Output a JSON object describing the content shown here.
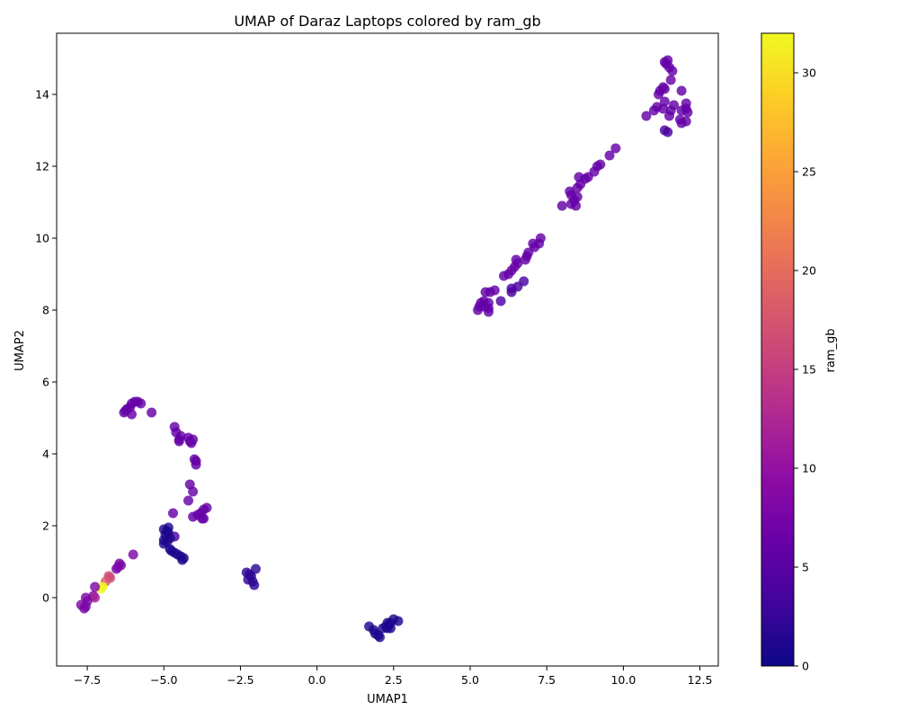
{
  "chart_data": {
    "type": "scatter",
    "title": "UMAP of Daraz Laptops colored by ram_gb",
    "xlabel": "UMAP1",
    "ylabel": "UMAP2",
    "xlim": [
      -8.5,
      13.1
    ],
    "ylim": [
      -1.9,
      15.7
    ],
    "xticks": [
      -7.5,
      -5.0,
      -2.5,
      0.0,
      2.5,
      5.0,
      7.5,
      10.0,
      12.5
    ],
    "xtick_labels": [
      "−7.5",
      "−5.0",
      "−2.5",
      "0.0",
      "2.5",
      "5.0",
      "7.5",
      "10.0",
      "12.5"
    ],
    "yticks": [
      0,
      2,
      4,
      6,
      8,
      10,
      12,
      14
    ],
    "ytick_labels": [
      "0",
      "2",
      "4",
      "6",
      "8",
      "10",
      "12",
      "14"
    ],
    "grid": false,
    "legend": "none",
    "colorbar": {
      "label": "ram_gb",
      "range": [
        0,
        32
      ],
      "ticks": [
        0,
        5,
        10,
        15,
        20,
        25,
        30
      ],
      "tick_labels": [
        "0",
        "5",
        "10",
        "15",
        "20",
        "25",
        "30"
      ],
      "colormap": "plasma"
    },
    "point_columns": [
      "umap1",
      "umap2",
      "ram_gb"
    ],
    "points": [
      [
        11.35,
        14.9,
        6
      ],
      [
        11.45,
        14.95,
        6
      ],
      [
        11.4,
        14.85,
        6
      ],
      [
        11.5,
        14.75,
        6
      ],
      [
        11.6,
        14.65,
        6
      ],
      [
        11.55,
        14.4,
        6
      ],
      [
        11.9,
        14.1,
        6
      ],
      [
        11.35,
        14.15,
        6
      ],
      [
        11.2,
        14.1,
        6
      ],
      [
        11.15,
        14.0,
        6
      ],
      [
        11.3,
        14.2,
        6
      ],
      [
        11.65,
        13.7,
        6
      ],
      [
        11.35,
        13.8,
        6
      ],
      [
        11.1,
        13.65,
        6
      ],
      [
        11.0,
        13.55,
        6
      ],
      [
        11.3,
        13.6,
        6
      ],
      [
        11.55,
        13.55,
        6
      ],
      [
        11.5,
        13.4,
        6
      ],
      [
        12.05,
        13.75,
        6
      ],
      [
        12.05,
        13.6,
        6
      ],
      [
        12.1,
        13.5,
        6
      ],
      [
        11.9,
        13.55,
        6
      ],
      [
        11.85,
        13.3,
        6
      ],
      [
        11.9,
        13.2,
        6
      ],
      [
        12.05,
        13.25,
        6
      ],
      [
        10.75,
        13.4,
        6
      ],
      [
        11.35,
        13.0,
        4
      ],
      [
        11.45,
        12.95,
        4
      ],
      [
        9.75,
        12.5,
        6
      ],
      [
        9.55,
        12.3,
        6
      ],
      [
        9.25,
        12.05,
        6
      ],
      [
        9.15,
        12.0,
        6
      ],
      [
        9.05,
        11.85,
        6
      ],
      [
        8.85,
        11.7,
        6
      ],
      [
        8.75,
        11.65,
        6
      ],
      [
        8.55,
        11.7,
        6
      ],
      [
        8.6,
        11.5,
        6
      ],
      [
        8.5,
        11.4,
        6
      ],
      [
        8.25,
        11.3,
        6
      ],
      [
        8.3,
        11.2,
        6
      ],
      [
        8.5,
        11.15,
        6
      ],
      [
        8.4,
        11.05,
        6
      ],
      [
        8.3,
        10.95,
        6
      ],
      [
        8.45,
        10.9,
        6
      ],
      [
        8.0,
        10.9,
        6
      ],
      [
        7.3,
        10.0,
        6
      ],
      [
        7.25,
        9.85,
        6
      ],
      [
        7.05,
        9.85,
        6
      ],
      [
        7.1,
        9.75,
        6
      ],
      [
        6.9,
        9.6,
        6
      ],
      [
        6.85,
        9.5,
        6
      ],
      [
        6.8,
        9.4,
        6
      ],
      [
        6.55,
        9.3,
        6
      ],
      [
        6.5,
        9.4,
        6
      ],
      [
        6.45,
        9.2,
        6
      ],
      [
        6.35,
        9.1,
        6
      ],
      [
        6.25,
        9.0,
        6
      ],
      [
        6.1,
        8.95,
        6
      ],
      [
        6.75,
        8.8,
        4
      ],
      [
        6.55,
        8.65,
        4
      ],
      [
        6.35,
        8.6,
        4
      ],
      [
        6.35,
        8.5,
        4
      ],
      [
        5.8,
        8.55,
        6
      ],
      [
        5.65,
        8.5,
        6
      ],
      [
        5.5,
        8.5,
        6
      ],
      [
        5.45,
        8.25,
        6
      ],
      [
        5.35,
        8.2,
        6
      ],
      [
        5.6,
        8.2,
        6
      ],
      [
        5.3,
        8.1,
        6
      ],
      [
        5.45,
        8.1,
        6
      ],
      [
        5.6,
        8.05,
        6
      ],
      [
        5.25,
        8.0,
        6
      ],
      [
        5.6,
        7.95,
        6
      ],
      [
        6.0,
        8.25,
        4
      ],
      [
        -5.85,
        5.45,
        6
      ],
      [
        -5.95,
        5.45,
        6
      ],
      [
        -6.05,
        5.4,
        6
      ],
      [
        -5.75,
        5.4,
        6
      ],
      [
        -6.1,
        5.3,
        6
      ],
      [
        -6.2,
        5.25,
        6
      ],
      [
        -6.25,
        5.2,
        6
      ],
      [
        -6.3,
        5.15,
        6
      ],
      [
        -6.05,
        5.1,
        6
      ],
      [
        -5.4,
        5.15,
        6
      ],
      [
        -4.65,
        4.75,
        6
      ],
      [
        -4.6,
        4.6,
        6
      ],
      [
        -4.45,
        4.5,
        6
      ],
      [
        -4.5,
        4.4,
        6
      ],
      [
        -4.5,
        4.35,
        6
      ],
      [
        -4.2,
        4.45,
        6
      ],
      [
        -4.05,
        4.4,
        6
      ],
      [
        -4.15,
        4.35,
        6
      ],
      [
        -4.1,
        4.3,
        6
      ],
      [
        -4.0,
        3.85,
        6
      ],
      [
        -3.95,
        3.8,
        6
      ],
      [
        -3.95,
        3.7,
        6
      ],
      [
        -4.15,
        3.15,
        6
      ],
      [
        -4.05,
        2.95,
        6
      ],
      [
        -4.2,
        2.7,
        6
      ],
      [
        -3.6,
        2.5,
        6
      ],
      [
        -3.7,
        2.45,
        6
      ],
      [
        -3.8,
        2.35,
        6
      ],
      [
        -3.9,
        2.3,
        6
      ],
      [
        -4.05,
        2.25,
        6
      ],
      [
        -3.75,
        2.2,
        6
      ],
      [
        -3.7,
        2.2,
        6
      ],
      [
        -4.7,
        2.35,
        6
      ],
      [
        -4.65,
        1.7,
        4
      ],
      [
        -4.85,
        1.95,
        1
      ],
      [
        -4.9,
        1.85,
        1
      ],
      [
        -5.0,
        1.9,
        1
      ],
      [
        -4.85,
        1.8,
        1
      ],
      [
        -4.95,
        1.75,
        1
      ],
      [
        -4.8,
        1.65,
        1
      ],
      [
        -5.0,
        1.6,
        1
      ],
      [
        -4.9,
        1.55,
        1
      ],
      [
        -5.0,
        1.5,
        1
      ],
      [
        -4.8,
        1.35,
        1
      ],
      [
        -4.75,
        1.3,
        1
      ],
      [
        -4.65,
        1.25,
        1
      ],
      [
        -4.55,
        1.2,
        1
      ],
      [
        -4.45,
        1.15,
        1
      ],
      [
        -4.35,
        1.1,
        1
      ],
      [
        -4.4,
        1.05,
        1
      ],
      [
        -6.0,
        1.2,
        8
      ],
      [
        -6.45,
        0.95,
        8
      ],
      [
        -6.4,
        0.9,
        8
      ],
      [
        -6.5,
        0.85,
        8
      ],
      [
        -6.55,
        0.8,
        8
      ],
      [
        -6.8,
        0.6,
        16
      ],
      [
        -6.75,
        0.55,
        16
      ],
      [
        -6.9,
        0.45,
        18
      ],
      [
        -7.0,
        0.3,
        32
      ],
      [
        -7.05,
        0.25,
        32
      ],
      [
        -7.25,
        0.3,
        8
      ],
      [
        -7.3,
        0.05,
        8
      ],
      [
        -7.25,
        0.0,
        12
      ],
      [
        -7.55,
        0.0,
        8
      ],
      [
        -7.5,
        -0.1,
        8
      ],
      [
        -7.7,
        -0.2,
        8
      ],
      [
        -7.55,
        -0.25,
        8
      ],
      [
        -7.6,
        -0.3,
        8
      ],
      [
        -2.3,
        0.7,
        2
      ],
      [
        -2.2,
        0.65,
        2
      ],
      [
        -2.0,
        0.8,
        2
      ],
      [
        -2.15,
        0.6,
        2
      ],
      [
        -2.25,
        0.5,
        2
      ],
      [
        -2.1,
        0.45,
        2
      ],
      [
        -2.05,
        0.35,
        2
      ],
      [
        2.5,
        -0.6,
        1
      ],
      [
        2.65,
        -0.65,
        1
      ],
      [
        2.4,
        -0.7,
        1
      ],
      [
        2.3,
        -0.7,
        1
      ],
      [
        2.35,
        -0.75,
        1
      ],
      [
        2.25,
        -0.8,
        1
      ],
      [
        2.4,
        -0.85,
        1
      ],
      [
        2.3,
        -0.85,
        1
      ],
      [
        2.15,
        -0.85,
        1
      ],
      [
        1.7,
        -0.8,
        1
      ],
      [
        1.85,
        -0.9,
        1
      ],
      [
        1.9,
        -1.0,
        1
      ],
      [
        2.0,
        -1.05,
        1
      ],
      [
        2.05,
        -1.1,
        1
      ]
    ]
  }
}
